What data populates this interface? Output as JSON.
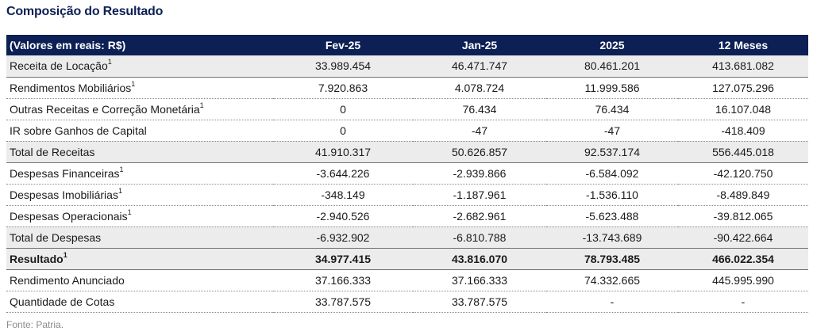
{
  "title": "Composição do Resultado",
  "source": "Fonte: Patria.",
  "header": [
    "(Valores em reais: R$)",
    "Fev-25",
    "Jan-25",
    "2025",
    "12 Meses"
  ],
  "rows": [
    {
      "label": "Receita de Locação",
      "sup": "1",
      "values": [
        "33.989.454",
        "46.471.747",
        "80.461.201",
        "413.681.082"
      ]
    },
    {
      "label": "Rendimentos Mobiliários",
      "sup": "1",
      "values": [
        "7.920.863",
        "4.078.724",
        "11.999.586",
        "127.075.296"
      ]
    },
    {
      "label": "Outras Receitas e Correção Monetária",
      "sup": "1",
      "values": [
        "0",
        "76.434",
        "76.434",
        "16.107.048"
      ]
    },
    {
      "label": "IR sobre Ganhos de Capital",
      "sup": "",
      "values": [
        "0",
        "-47",
        "-47",
        "-418.409"
      ]
    },
    {
      "label": "Total de Receitas",
      "sup": "",
      "values": [
        "41.910.317",
        "50.626.857",
        "92.537.174",
        "556.445.018"
      ]
    },
    {
      "label": "Despesas Financeiras",
      "sup": "1",
      "values": [
        "-3.644.226",
        "-2.939.866",
        "-6.584.092",
        "-42.120.750"
      ]
    },
    {
      "label": "Despesas Imobiliárias",
      "sup": "1",
      "values": [
        "-348.149",
        "-1.187.961",
        "-1.536.110",
        "-8.489.849"
      ]
    },
    {
      "label": "Despesas Operacionais",
      "sup": "1",
      "values": [
        "-2.940.526",
        "-2.682.961",
        "-5.623.488",
        "-39.812.065"
      ]
    },
    {
      "label": "Total de Despesas",
      "sup": "",
      "values": [
        "-6.932.902",
        "-6.810.788",
        "-13.743.689",
        "-90.422.664"
      ]
    },
    {
      "label": "Resultado",
      "sup": "1",
      "values": [
        "34.977.415",
        "43.816.070",
        "78.793.485",
        "466.022.354"
      ]
    },
    {
      "label": "Rendimento Anunciado",
      "sup": "",
      "values": [
        "37.166.333",
        "37.166.333",
        "74.332.665",
        "445.995.990"
      ]
    },
    {
      "label": "Quantidade de Cotas",
      "sup": "",
      "values": [
        "33.787.575",
        "33.787.575",
        "-",
        "-"
      ]
    }
  ]
}
